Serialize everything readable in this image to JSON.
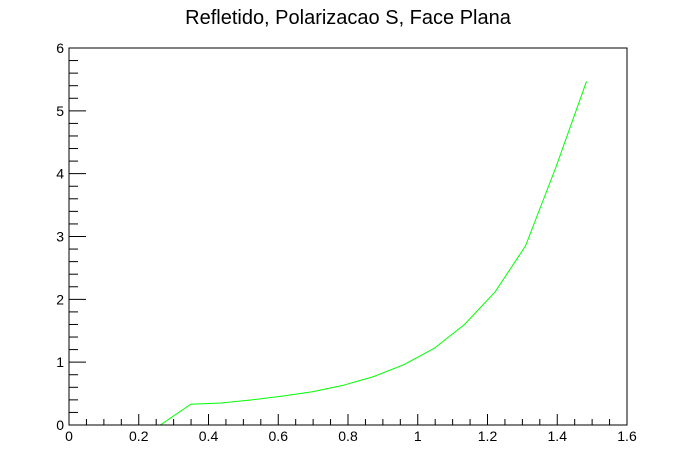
{
  "chart_data": {
    "type": "line",
    "title": "Refletido, Polarizacao S, Face Plana",
    "xlabel": "",
    "ylabel": "",
    "xlim": [
      0,
      1.6
    ],
    "ylim": [
      0,
      6
    ],
    "grid": false,
    "legend": "none",
    "x_ticks": [
      0,
      0.2,
      0.4,
      0.6,
      0.8,
      1,
      1.2,
      1.4,
      1.6
    ],
    "x_tick_labels": [
      "0",
      "0.2",
      "0.4",
      "0.6",
      "0.8",
      "1",
      "1.2",
      "1.4",
      "1.6"
    ],
    "y_ticks": [
      0,
      1,
      2,
      3,
      4,
      5,
      6
    ],
    "y_tick_labels": [
      "0",
      "1",
      "2",
      "3",
      "4",
      "5",
      "6"
    ],
    "series": [
      {
        "color": "#00ff00",
        "x": [
          0.0,
          0.087,
          0.175,
          0.262,
          0.349,
          0.436,
          0.524,
          0.611,
          0.698,
          0.785,
          0.873,
          0.96,
          1.047,
          1.134,
          1.222,
          1.309,
          1.396,
          1.484
        ],
        "y": [
          0.0,
          0.0,
          0.0,
          0.0,
          0.33,
          0.35,
          0.4,
          0.46,
          0.53,
          0.63,
          0.77,
          0.96,
          1.22,
          1.6,
          2.12,
          2.85,
          4.1,
          5.47
        ]
      }
    ]
  }
}
